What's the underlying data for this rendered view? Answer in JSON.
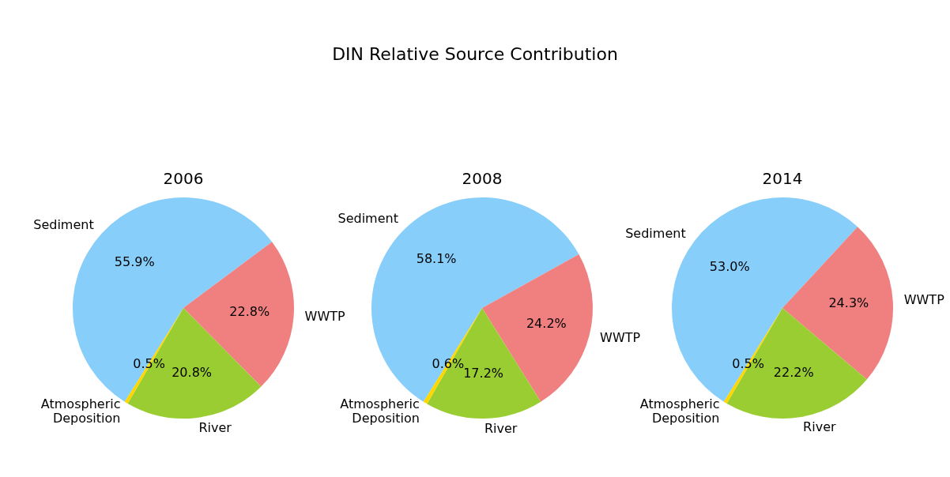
{
  "chart_data": [
    {
      "type": "other",
      "title": "DIN Relative Source Contribution"
    },
    {
      "type": "pie",
      "subtitle": "2006",
      "categories": [
        "Sediment",
        "WWTP",
        "River",
        "Atmospheric\nDeposition"
      ],
      "values": [
        55.9,
        22.8,
        20.8,
        0.5
      ],
      "colors": [
        "#87cefa",
        "#f08080",
        "#9acd32",
        "#ffd700"
      ],
      "value_labels": [
        "55.9%",
        "22.8%",
        "20.8%",
        "0.5%"
      ],
      "legend": false
    },
    {
      "type": "pie",
      "subtitle": "2008",
      "categories": [
        "Sediment",
        "WWTP",
        "River",
        "Atmospheric\nDeposition"
      ],
      "values": [
        58.1,
        24.2,
        17.2,
        0.6
      ],
      "colors": [
        "#87cefa",
        "#f08080",
        "#9acd32",
        "#ffd700"
      ],
      "value_labels": [
        "58.1%",
        "24.2%",
        "17.2%",
        "0.6%"
      ],
      "legend": false
    },
    {
      "type": "pie",
      "subtitle": "2014",
      "categories": [
        "Sediment",
        "WWTP",
        "River",
        "Atmospheric\nDeposition"
      ],
      "values": [
        53.0,
        24.3,
        22.2,
        0.5
      ],
      "colors": [
        "#87cefa",
        "#f08080",
        "#9acd32",
        "#ffd700"
      ],
      "value_labels": [
        "53.0%",
        "24.3%",
        "22.2%",
        "0.5%"
      ],
      "legend": false
    }
  ]
}
